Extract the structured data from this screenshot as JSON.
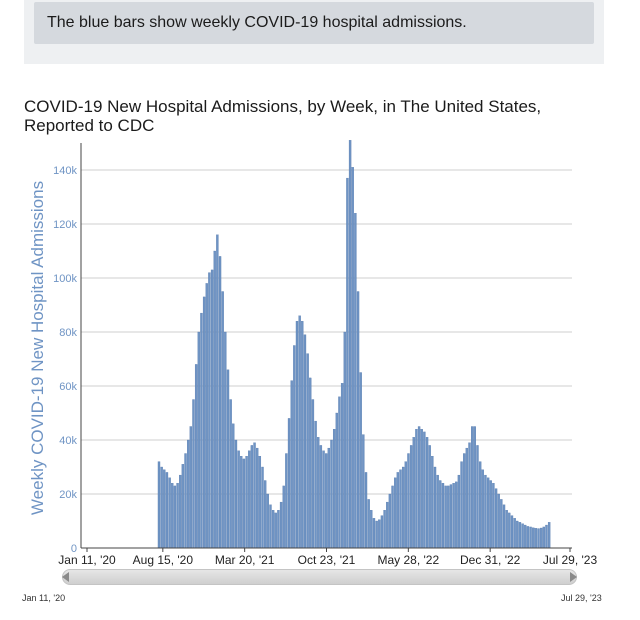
{
  "banner": {
    "text": "The blue bars show weekly COVID-19 hospital admissions."
  },
  "chart_data": {
    "type": "bar",
    "title": "COVID-19 New Hospital Admissions, by Week, in The United States, Reported to CDC",
    "xlabel": "",
    "ylabel": "Weekly COVID-19 New Hospital Admissions",
    "ylim": [
      0,
      150000
    ],
    "grid": true,
    "bar_color": "#6f94c4",
    "x_range": [
      "2020-01-11",
      "2023-07-29"
    ],
    "x_ticks": [
      "Jan 11, '20",
      "Aug 15, '20",
      "Mar 20, '21",
      "Oct 23, '21",
      "May 28, '22",
      "Dec 31, '22",
      "Jul 29, '23"
    ],
    "y_ticks": [
      {
        "value": 0,
        "label": "0"
      },
      {
        "value": 20000,
        "label": "20k"
      },
      {
        "value": 40000,
        "label": "40k"
      },
      {
        "value": 60000,
        "label": "60k"
      },
      {
        "value": 80000,
        "label": "80k"
      },
      {
        "value": 100000,
        "label": "100k"
      },
      {
        "value": 120000,
        "label": "120k"
      },
      {
        "value": 140000,
        "label": "140k"
      }
    ],
    "first_week": "2020-08-01",
    "values": [
      32000,
      30000,
      29000,
      28000,
      26000,
      24000,
      23000,
      24000,
      27000,
      31000,
      35000,
      40000,
      45000,
      55000,
      68000,
      80000,
      87000,
      93000,
      98000,
      102000,
      103000,
      110000,
      116000,
      108000,
      95000,
      80000,
      66000,
      55000,
      46000,
      40000,
      36000,
      34000,
      33000,
      34000,
      36000,
      38000,
      39000,
      37000,
      34000,
      30000,
      25000,
      20000,
      16000,
      14000,
      13000,
      14000,
      17000,
      23000,
      35000,
      48000,
      62000,
      75000,
      84000,
      86000,
      84000,
      79000,
      72000,
      63000,
      55000,
      47000,
      41000,
      38000,
      36000,
      35000,
      37000,
      40000,
      44000,
      50000,
      56000,
      61000,
      80000,
      137000,
      151000,
      141000,
      124000,
      95000,
      65000,
      42000,
      28000,
      18000,
      14000,
      11000,
      10000,
      10500,
      12000,
      14000,
      17000,
      20000,
      23000,
      26000,
      28000,
      29000,
      30000,
      32000,
      35000,
      38000,
      41000,
      44000,
      45000,
      44000,
      43000,
      41000,
      38000,
      34000,
      30000,
      27000,
      25000,
      24000,
      23000,
      23000,
      23500,
      24000,
      24500,
      27000,
      32000,
      35000,
      37000,
      39000,
      45000,
      45000,
      38000,
      32000,
      29000,
      27000,
      26000,
      25000,
      24000,
      22000,
      20000,
      18000,
      16000,
      14000,
      13000,
      12000,
      11000,
      10000,
      9500,
      9000,
      8500,
      8000,
      7800,
      7500,
      7300,
      7200,
      7400,
      7800,
      8500,
      9500
    ],
    "navigator": {
      "start_label": "Jan 11, '20",
      "end_label": "Jul 29, '23"
    }
  }
}
